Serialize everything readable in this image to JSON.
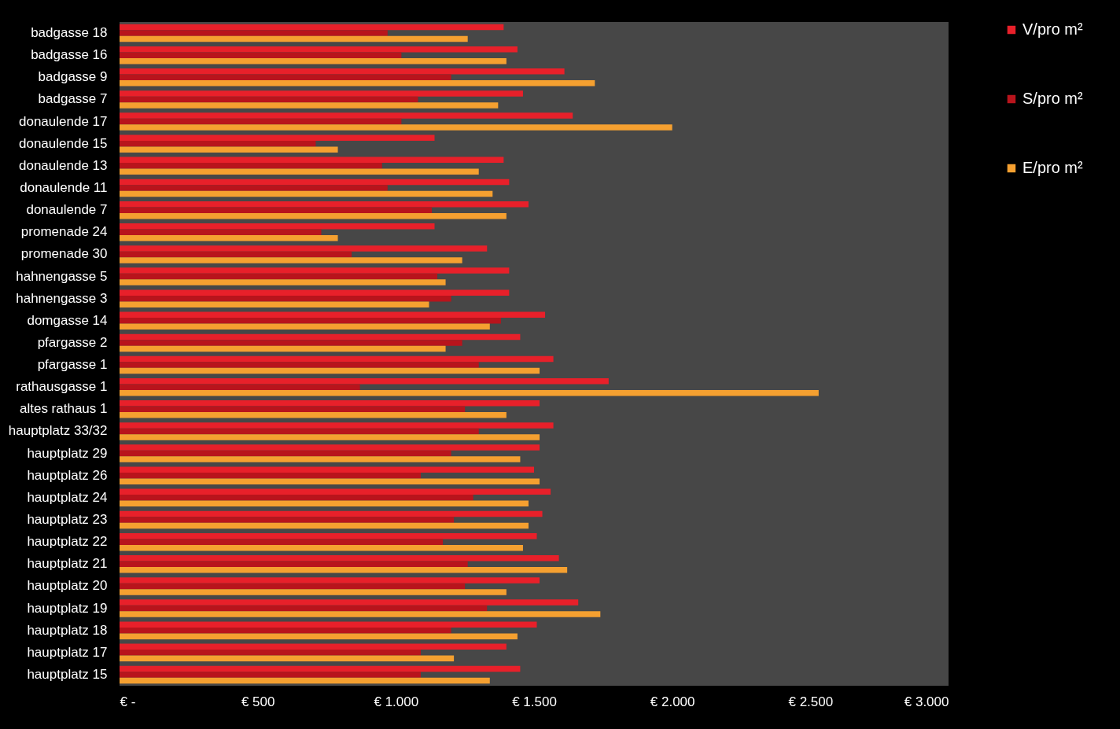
{
  "chart_data": {
    "type": "bar",
    "orientation": "horizontal",
    "legend": "right",
    "grid": false,
    "categories": [
      "badgasse 18",
      "badgasse 16",
      "badgasse 9",
      "badgasse 7",
      "donaulende 17",
      "donaulende 15",
      "donaulende 13",
      "donaulende 11",
      "donaulende 7",
      "promenade 24",
      "promenade 30",
      "hahnengasse 5",
      "hahnengasse 3",
      "domgasse 14",
      "pfargasse 2",
      "pfargasse 1",
      "rathausgasse 1",
      "altes rathaus 1",
      "hauptplatz 33/32",
      "hauptplatz 29",
      "hauptplatz 26",
      "hauptplatz 24",
      "hauptplatz 23",
      "hauptplatz 22",
      "hauptplatz 21",
      "hauptplatz 20",
      "hauptplatz 19",
      "hauptplatz 18",
      "hauptplatz 17",
      "hauptplatz 15"
    ],
    "series": [
      {
        "name": "V/pro m²",
        "color": "#e8202a",
        "values": [
          1390,
          1440,
          1610,
          1460,
          1640,
          1140,
          1390,
          1410,
          1480,
          1140,
          1330,
          1410,
          1410,
          1540,
          1450,
          1570,
          1770,
          1520,
          1570,
          1520,
          1500,
          1560,
          1530,
          1510,
          1590,
          1520,
          1660,
          1510,
          1400,
          1450
        ]
      },
      {
        "name": "S/pro m²",
        "color": "#b8141c",
        "values": [
          970,
          1020,
          1200,
          1080,
          1020,
          710,
          950,
          970,
          1130,
          730,
          840,
          1150,
          1200,
          1380,
          1240,
          1300,
          870,
          1250,
          1300,
          1200,
          1090,
          1280,
          1210,
          1170,
          1260,
          1250,
          1330,
          1200,
          1090,
          1090
        ]
      },
      {
        "name": "E/pro m²",
        "color": "#f5a030",
        "values": [
          1260,
          1400,
          1720,
          1370,
          2000,
          790,
          1300,
          1350,
          1400,
          790,
          1240,
          1180,
          1120,
          1340,
          1180,
          1520,
          2530,
          1400,
          1520,
          1450,
          1520,
          1480,
          1480,
          1460,
          1620,
          1400,
          1740,
          1440,
          1210,
          1340
        ]
      }
    ],
    "xlim": [
      0,
      3000
    ],
    "xticks": [
      {
        "value": 0,
        "label": "€ -"
      },
      {
        "value": 500,
        "label": "€ 500"
      },
      {
        "value": 1000,
        "label": "€ 1.000"
      },
      {
        "value": 1500,
        "label": "€ 1.500"
      },
      {
        "value": 2000,
        "label": "€ 2.000"
      },
      {
        "value": 2500,
        "label": "€ 2.500"
      },
      {
        "value": 3000,
        "label": "€ 3.000"
      }
    ]
  }
}
